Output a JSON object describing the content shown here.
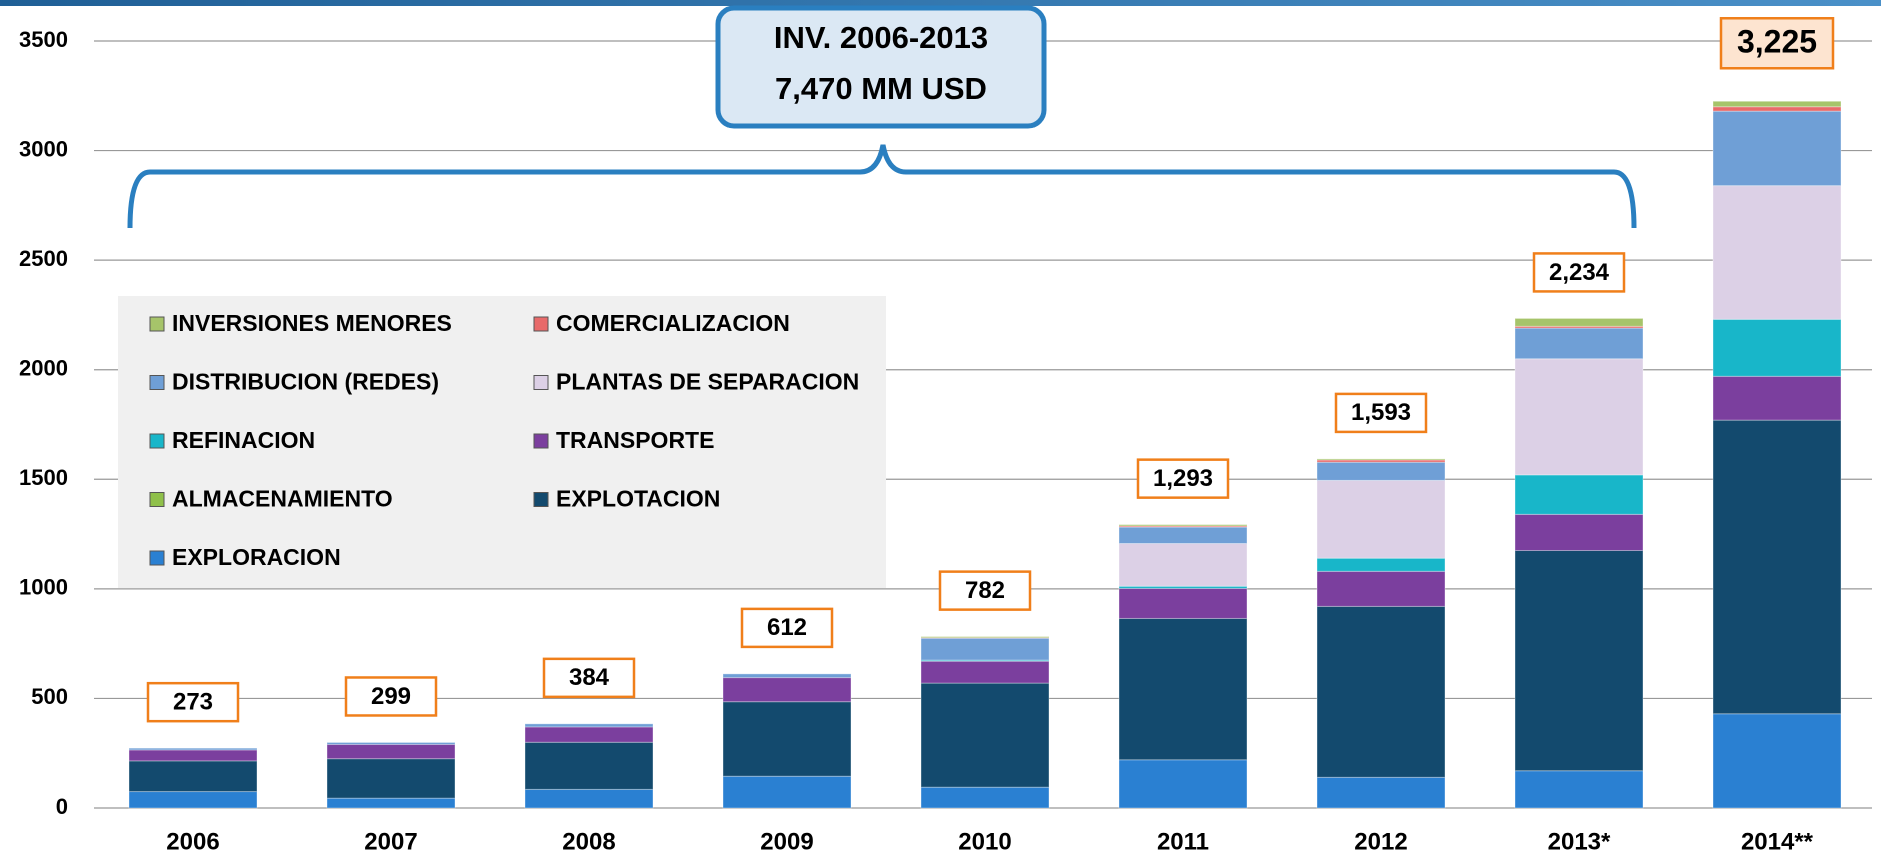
{
  "chart_data": {
    "type": "stacked_bar",
    "annotation": [
      "INV. 2006-2013",
      "7,470 MM USD"
    ],
    "categories": [
      "2006",
      "2007",
      "2008",
      "2009",
      "2010",
      "2011",
      "2012",
      "2013*",
      "2014**"
    ],
    "total_labels": [
      "273",
      "299",
      "384",
      "612",
      "782",
      "1,293",
      "1,593",
      "2,234",
      "3,225"
    ],
    "series": [
      {
        "name": "EXPLORACION",
        "color": "#2a80d2",
        "values": [
          75,
          45,
          85,
          145,
          95,
          220,
          140,
          170,
          430
        ]
      },
      {
        "name": "EXPLOTACION",
        "color": "#134a6e",
        "values": [
          140,
          180,
          215,
          340,
          475,
          645,
          780,
          1005,
          1340
        ]
      },
      {
        "name": "ALMACENAMIENTO",
        "color": "#8fc04a",
        "values": [
          0,
          0,
          0,
          0,
          0,
          0,
          0,
          0,
          0
        ]
      },
      {
        "name": "TRANSPORTE",
        "color": "#7b3f9e",
        "values": [
          50,
          65,
          70,
          110,
          100,
          137,
          160,
          165,
          200
        ]
      },
      {
        "name": "REFINACION",
        "color": "#18b6c9",
        "values": [
          0,
          0,
          0,
          0,
          5,
          10,
          60,
          180,
          260
        ]
      },
      {
        "name": "PLANTAS DE SEPARACION",
        "color": "#dcd0e6",
        "values": [
          0,
          0,
          0,
          0,
          0,
          195,
          355,
          530,
          610
        ]
      },
      {
        "name": "DISTRIBUCION  (REDES)",
        "color": "#6f9fd6",
        "values": [
          8,
          9,
          14,
          17,
          100,
          75,
          83,
          140,
          340
        ]
      },
      {
        "name": "COMERCIALIZACION",
        "color": "#e86a6a",
        "values": [
          0,
          0,
          0,
          0,
          2,
          5,
          10,
          8,
          20
        ]
      },
      {
        "name": "INVERSIONES MENORES",
        "color": "#a6c46a",
        "values": [
          0,
          0,
          0,
          0,
          5,
          6,
          5,
          36,
          25
        ]
      }
    ],
    "ylim": [
      0,
      3500
    ],
    "yticks": [
      0,
      500,
      1000,
      1500,
      2000,
      2500,
      3000,
      3500
    ],
    "grid": true
  }
}
